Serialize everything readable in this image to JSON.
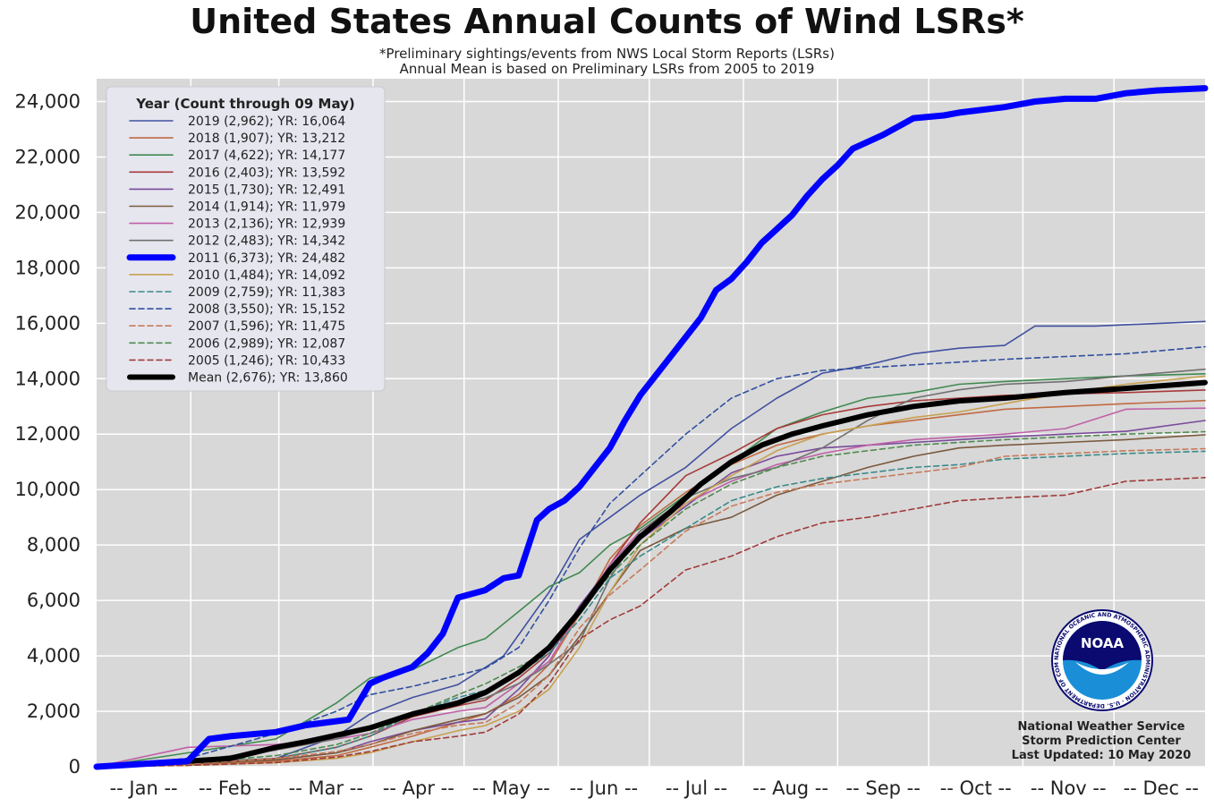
{
  "chart_data": {
    "type": "line",
    "title": "United States Annual Counts of Wind LSRs*",
    "subtitle_lines": [
      "*Preliminary sightings/events from NWS Local Storm Reports (LSRs)",
      "Annual Mean is based on Preliminary LSRs from 2005 to 2019"
    ],
    "xlabel": "",
    "ylabel": "",
    "x_unit": "day of year",
    "xlim": [
      1,
      366
    ],
    "ylim": [
      0,
      25000
    ],
    "x_tick_labels": [
      "-- Jan --",
      "-- Feb --",
      "-- Mar --",
      "-- Apr --",
      "-- May --",
      "-- Jun --",
      "-- Jul --",
      "-- Aug --",
      "-- Sep --",
      "-- Oct --",
      "-- Nov --",
      "-- Dec --"
    ],
    "y_ticks": [
      0,
      2000,
      4000,
      6000,
      8000,
      10000,
      12000,
      14000,
      16000,
      18000,
      20000,
      22000,
      24000
    ],
    "y_tick_labels": [
      "0",
      "2,000",
      "4,000",
      "6,000",
      "8,000",
      "10,000",
      "12,000",
      "14,000",
      "16,000",
      "18,000",
      "20,000",
      "22,000",
      "24,000"
    ],
    "grid": true,
    "legend_title": "Year (Count through 09 May)",
    "legend_position": "top-left",
    "series": [
      {
        "name": "2019 (2,962); YR: 16,064",
        "color": "#4050a0",
        "style": "solid",
        "width": 1.6,
        "x": [
          1,
          31,
          60,
          80,
          91,
          105,
          120,
          135,
          150,
          160,
          170,
          180,
          195,
          210,
          225,
          240,
          255,
          270,
          285,
          300,
          310,
          330,
          366
        ],
        "y": [
          0,
          120,
          300,
          1100,
          1900,
          2500,
          2962,
          4000,
          6300,
          8200,
          9000,
          9800,
          10800,
          12200,
          13300,
          14200,
          14500,
          14900,
          15100,
          15200,
          15900,
          15900,
          16064
        ]
      },
      {
        "name": "2018 (1,907); YR: 13,212",
        "color": "#c06a42",
        "style": "solid",
        "width": 1.6,
        "x": [
          1,
          31,
          60,
          80,
          91,
          105,
          120,
          129,
          140,
          150,
          160,
          170,
          180,
          195,
          210,
          225,
          240,
          255,
          270,
          285,
          300,
          320,
          340,
          366
        ],
        "y": [
          0,
          80,
          200,
          400,
          700,
          1100,
          1600,
          1907,
          2600,
          3700,
          5500,
          7500,
          8700,
          9900,
          10900,
          11600,
          12000,
          12300,
          12500,
          12700,
          12900,
          13000,
          13100,
          13212
        ]
      },
      {
        "name": "2017 (4,622); YR: 14,177",
        "color": "#408a50",
        "style": "solid",
        "width": 1.6,
        "x": [
          1,
          31,
          60,
          80,
          91,
          105,
          120,
          129,
          140,
          150,
          160,
          170,
          180,
          195,
          210,
          225,
          240,
          255,
          270,
          285,
          300,
          320,
          340,
          366
        ],
        "y": [
          0,
          500,
          1000,
          2300,
          3200,
          3500,
          4300,
          4622,
          5600,
          6500,
          7000,
          8000,
          8600,
          9800,
          11000,
          12200,
          12800,
          13300,
          13500,
          13800,
          13900,
          14000,
          14100,
          14177
        ]
      },
      {
        "name": "2016 (2,403); YR: 13,592",
        "color": "#a83a3a",
        "style": "solid",
        "width": 1.6,
        "x": [
          1,
          31,
          60,
          80,
          91,
          105,
          120,
          129,
          140,
          150,
          160,
          170,
          180,
          195,
          210,
          225,
          240,
          255,
          270,
          285,
          300,
          320,
          340,
          366
        ],
        "y": [
          0,
          150,
          300,
          700,
          1100,
          1800,
          2200,
          2403,
          3200,
          4100,
          5500,
          7300,
          8800,
          10500,
          11300,
          12200,
          12700,
          13000,
          13200,
          13300,
          13400,
          13450,
          13500,
          13592
        ]
      },
      {
        "name": "2015 (1,730); YR: 12,491",
        "color": "#7a4a9a",
        "style": "solid",
        "width": 1.6,
        "x": [
          1,
          31,
          60,
          80,
          91,
          105,
          120,
          129,
          140,
          150,
          160,
          170,
          180,
          195,
          210,
          225,
          240,
          255,
          270,
          285,
          300,
          320,
          340,
          366
        ],
        "y": [
          0,
          100,
          250,
          500,
          900,
          1300,
          1600,
          1730,
          2800,
          4000,
          5800,
          7200,
          8200,
          9400,
          10600,
          11200,
          11500,
          11600,
          11700,
          11800,
          11900,
          12000,
          12100,
          12491
        ]
      },
      {
        "name": "2014 (1,914); YR: 11,979",
        "color": "#7a5a3e",
        "style": "solid",
        "width": 1.6,
        "x": [
          1,
          31,
          60,
          80,
          91,
          105,
          120,
          129,
          140,
          150,
          160,
          170,
          180,
          195,
          210,
          225,
          240,
          255,
          270,
          285,
          300,
          320,
          340,
          366
        ],
        "y": [
          0,
          100,
          250,
          500,
          800,
          1300,
          1700,
          1914,
          2500,
          3300,
          4700,
          6300,
          7800,
          8600,
          9000,
          9800,
          10300,
          10800,
          11200,
          11500,
          11600,
          11700,
          11800,
          11979
        ]
      },
      {
        "name": "2013 (2,136); YR: 12,939",
        "color": "#c060a8",
        "style": "solid",
        "width": 1.6,
        "x": [
          1,
          31,
          60,
          80,
          91,
          105,
          120,
          129,
          140,
          150,
          160,
          170,
          180,
          195,
          210,
          225,
          240,
          255,
          270,
          285,
          300,
          320,
          340,
          366
        ],
        "y": [
          0,
          700,
          800,
          1000,
          1200,
          1700,
          2000,
          2136,
          3000,
          3800,
          5600,
          7300,
          8500,
          9500,
          10300,
          10900,
          11300,
          11600,
          11800,
          11900,
          12000,
          12200,
          12900,
          12939
        ]
      },
      {
        "name": "2012 (2,483); YR: 14,342",
        "color": "#707070",
        "style": "solid",
        "width": 1.6,
        "x": [
          1,
          31,
          60,
          80,
          91,
          105,
          120,
          129,
          140,
          150,
          160,
          170,
          180,
          195,
          210,
          225,
          240,
          255,
          270,
          285,
          300,
          320,
          340,
          366
        ],
        "y": [
          0,
          200,
          600,
          1000,
          1400,
          1900,
          2300,
          2483,
          3000,
          3700,
          4500,
          6800,
          8500,
          9700,
          10400,
          10800,
          11500,
          12500,
          13300,
          13600,
          13800,
          13900,
          14100,
          14342
        ]
      },
      {
        "name": "2011 (6,373); YR: 24,482",
        "color": "#0000ff",
        "style": "solid",
        "width": 7,
        "x": [
          1,
          31,
          38,
          45,
          55,
          60,
          70,
          84,
          91,
          95,
          105,
          110,
          115,
          120,
          129,
          135,
          140,
          146,
          150,
          155,
          160,
          170,
          175,
          180,
          185,
          190,
          195,
          200,
          205,
          210,
          215,
          220,
          225,
          230,
          235,
          240,
          245,
          250,
          260,
          270,
          280,
          285,
          300,
          310,
          320,
          330,
          340,
          350,
          366
        ],
        "y": [
          0,
          200,
          1000,
          1100,
          1200,
          1250,
          1500,
          1700,
          3000,
          3200,
          3600,
          4100,
          4800,
          6100,
          6373,
          6800,
          6900,
          8900,
          9300,
          9600,
          10100,
          11500,
          12500,
          13400,
          14100,
          14800,
          15500,
          16200,
          17200,
          17600,
          18200,
          18900,
          19400,
          19900,
          20600,
          21200,
          21700,
          22300,
          22800,
          23400,
          23500,
          23600,
          23800,
          24000,
          24100,
          24100,
          24300,
          24400,
          24482
        ]
      },
      {
        "name": "2010 (1,484); YR: 14,092",
        "color": "#c8a050",
        "style": "solid",
        "width": 1.6,
        "x": [
          1,
          31,
          60,
          80,
          91,
          105,
          120,
          129,
          140,
          150,
          160,
          170,
          180,
          195,
          210,
          225,
          240,
          255,
          270,
          285,
          300,
          320,
          340,
          366
        ],
        "y": [
          0,
          50,
          150,
          300,
          500,
          900,
          1300,
          1484,
          2000,
          2800,
          4300,
          6300,
          8000,
          9500,
          10500,
          11400,
          12000,
          12300,
          12600,
          12800,
          13100,
          13500,
          13800,
          14092
        ]
      },
      {
        "name": "2009 (2,759); YR: 11,383",
        "color": "#3a8a8a",
        "style": "dashed",
        "width": 1.6,
        "x": [
          1,
          31,
          60,
          80,
          91,
          105,
          120,
          129,
          140,
          150,
          160,
          170,
          180,
          195,
          210,
          225,
          240,
          255,
          270,
          285,
          300,
          320,
          340,
          366
        ],
        "y": [
          0,
          150,
          300,
          700,
          1100,
          1900,
          2500,
          2759,
          3400,
          4100,
          5300,
          6800,
          7600,
          8600,
          9600,
          10100,
          10400,
          10600,
          10800,
          10900,
          11100,
          11200,
          11300,
          11383
        ]
      },
      {
        "name": "2008 (3,550); YR: 15,152",
        "color": "#3050a0",
        "style": "dashed",
        "width": 1.6,
        "x": [
          1,
          31,
          60,
          80,
          91,
          105,
          120,
          129,
          140,
          150,
          160,
          170,
          180,
          195,
          210,
          225,
          240,
          255,
          270,
          285,
          300,
          320,
          340,
          366
        ],
        "y": [
          0,
          300,
          1200,
          2000,
          2600,
          2900,
          3300,
          3550,
          4300,
          6000,
          7900,
          9500,
          10500,
          12000,
          13300,
          14000,
          14300,
          14400,
          14500,
          14600,
          14700,
          14800,
          14900,
          15152
        ]
      },
      {
        "name": "2007 (1,596); YR: 11,475",
        "color": "#c87a5a",
        "style": "dashed",
        "width": 1.6,
        "x": [
          1,
          31,
          60,
          80,
          91,
          105,
          120,
          129,
          140,
          150,
          160,
          170,
          180,
          195,
          210,
          225,
          240,
          255,
          270,
          285,
          300,
          320,
          340,
          366
        ],
        "y": [
          0,
          100,
          300,
          550,
          800,
          1200,
          1500,
          1596,
          2300,
          3300,
          5000,
          6200,
          7100,
          8500,
          9400,
          9900,
          10200,
          10400,
          10600,
          10800,
          11200,
          11300,
          11400,
          11475
        ]
      },
      {
        "name": "2006 (2,989); YR: 12,087",
        "color": "#508a50",
        "style": "dashed",
        "width": 1.6,
        "x": [
          1,
          31,
          60,
          80,
          91,
          105,
          120,
          129,
          140,
          150,
          160,
          170,
          180,
          195,
          210,
          225,
          240,
          255,
          270,
          285,
          300,
          320,
          340,
          366
        ],
        "y": [
          0,
          150,
          400,
          800,
          1200,
          1900,
          2600,
          2989,
          3600,
          4200,
          5600,
          6900,
          8000,
          9300,
          10200,
          10800,
          11200,
          11400,
          11600,
          11700,
          11800,
          11900,
          12000,
          12087
        ]
      },
      {
        "name": "2005 (1,246); YR: 10,433",
        "color": "#a03a3a",
        "style": "dashed",
        "width": 1.6,
        "x": [
          1,
          31,
          60,
          80,
          91,
          105,
          120,
          129,
          140,
          150,
          160,
          170,
          180,
          195,
          210,
          225,
          240,
          255,
          270,
          285,
          300,
          320,
          340,
          366
        ],
        "y": [
          0,
          50,
          150,
          350,
          550,
          900,
          1100,
          1246,
          1900,
          3000,
          4600,
          5300,
          5800,
          7100,
          7600,
          8300,
          8800,
          9000,
          9300,
          9600,
          9700,
          9800,
          10300,
          10433
        ]
      },
      {
        "name": "Mean (2,676); YR: 13,860",
        "color": "#000000",
        "style": "solid",
        "width": 6,
        "x": [
          1,
          31,
          45,
          60,
          70,
          91,
          105,
          120,
          129,
          140,
          150,
          160,
          170,
          180,
          190,
          200,
          210,
          220,
          230,
          240,
          255,
          270,
          285,
          300,
          320,
          340,
          366
        ],
        "y": [
          0,
          200,
          300,
          700,
          900,
          1400,
          1900,
          2300,
          2676,
          3400,
          4300,
          5600,
          7100,
          8300,
          9200,
          10200,
          11000,
          11600,
          12000,
          12300,
          12700,
          13000,
          13200,
          13300,
          13500,
          13650,
          13860
        ]
      }
    ],
    "credit_lines": [
      "National Weather Service",
      "Storm Prediction Center",
      "Last Updated: 10 May 2020"
    ],
    "logo_text": "NOAA",
    "logo_ring_text": "NATIONAL OCEANIC AND ATMOSPHERIC ADMINISTRATION · U.S. DEPARTMENT OF COMMERCE",
    "colors": {
      "plot_background": "#d8d8d8",
      "legend_background": "#e6e6ef",
      "grid": "#ffffff",
      "logo_dark": "#0a0a70",
      "logo_light": "#1a8fd8"
    }
  }
}
